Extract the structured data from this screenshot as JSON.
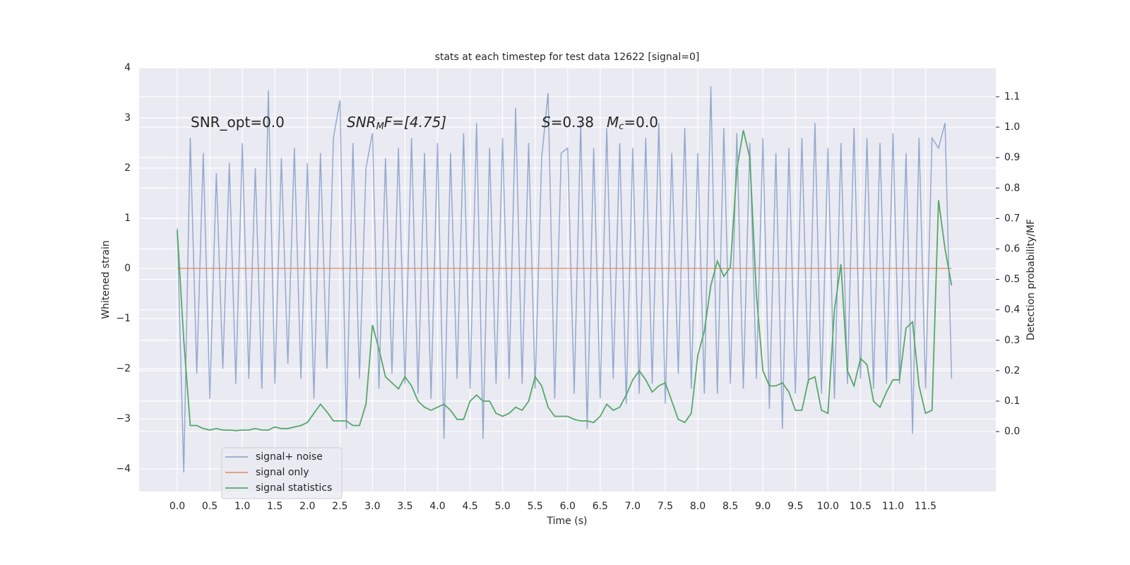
{
  "chart_data": {
    "type": "line",
    "title": "stats at each timestep for test data 12622 [signal=0]",
    "xlabel": "Time (s)",
    "ylabel": "Whitened strain",
    "y2label": "Detection probability/MF",
    "annotations": [
      [
        "SNR_opt=0.0"
      ],
      [
        "SNR",
        "M",
        "F=[4.75]"
      ],
      [
        "S",
        "=0.38",
        "M",
        "c",
        "=0.0"
      ]
    ],
    "x": [
      0.0,
      0.1,
      0.2,
      0.3,
      0.4,
      0.5,
      0.6,
      0.7,
      0.8,
      0.9,
      1.0,
      1.1,
      1.2,
      1.3,
      1.4,
      1.5,
      1.6,
      1.7,
      1.8,
      1.9,
      2.0,
      2.1,
      2.2,
      2.3,
      2.4,
      2.5,
      2.6,
      2.7,
      2.8,
      2.9,
      3.0,
      3.1,
      3.2,
      3.3,
      3.4,
      3.5,
      3.6,
      3.7,
      3.8,
      3.9,
      4.0,
      4.1,
      4.2,
      4.3,
      4.4,
      4.5,
      4.6,
      4.7,
      4.8,
      4.9,
      5.0,
      5.1,
      5.2,
      5.3,
      5.4,
      5.5,
      5.6,
      5.7,
      5.8,
      5.9,
      6.0,
      6.1,
      6.2,
      6.3,
      6.4,
      6.5,
      6.6,
      6.7,
      6.8,
      6.9,
      7.0,
      7.1,
      7.2,
      7.3,
      7.4,
      7.5,
      7.6,
      7.7,
      7.8,
      7.9,
      8.0,
      8.1,
      8.2,
      8.3,
      8.4,
      8.5,
      8.6,
      8.7,
      8.8,
      8.9,
      9.0,
      9.1,
      9.2,
      9.3,
      9.4,
      9.5,
      9.6,
      9.7,
      9.8,
      9.9,
      10.0,
      10.1,
      10.2,
      10.3,
      10.4,
      10.5,
      10.6,
      10.7,
      10.8,
      10.9,
      11.0,
      11.1,
      11.2,
      11.3,
      11.4,
      11.5,
      11.6,
      11.7,
      11.8,
      11.9
    ],
    "series": [
      {
        "name": "signal+ noise",
        "color": "#4c72b0",
        "opacity": 0.55,
        "values": [
          0.8,
          -4.07,
          2.6,
          -2.1,
          2.3,
          -2.6,
          1.9,
          -2.0,
          2.1,
          -2.3,
          2.5,
          -2.2,
          2.0,
          -2.4,
          3.55,
          -2.3,
          2.2,
          -1.9,
          2.4,
          -2.2,
          2.1,
          -2.6,
          2.3,
          -2.0,
          2.6,
          3.35,
          -3.2,
          2.5,
          -2.2,
          2.0,
          2.7,
          -2.4,
          2.2,
          -2.1,
          2.4,
          -2.3,
          2.6,
          -2.5,
          2.3,
          -2.6,
          2.5,
          -3.4,
          2.3,
          -2.2,
          2.7,
          -2.4,
          2.9,
          -3.4,
          2.4,
          -2.3,
          2.6,
          -2.2,
          3.2,
          -2.3,
          2.5,
          -2.4,
          2.2,
          3.5,
          -2.6,
          2.3,
          2.4,
          -2.5,
          2.9,
          -3.2,
          2.4,
          -2.6,
          2.8,
          -2.2,
          2.5,
          -2.7,
          2.4,
          -2.5,
          2.6,
          -2.3,
          2.9,
          -2.7,
          2.3,
          -2.1,
          2.8,
          -2.4,
          2.3,
          -2.5,
          3.63,
          -2.5,
          2.8,
          -2.3,
          2.7,
          -2.4,
          2.5,
          -2.2,
          2.6,
          -2.8,
          2.3,
          -3.2,
          2.4,
          -2.5,
          2.6,
          -2.3,
          2.9,
          -2.5,
          2.4,
          -2.6,
          2.5,
          -2.3,
          2.8,
          -2.2,
          2.6,
          -2.4,
          2.5,
          -2.3,
          2.7,
          -2.3,
          2.3,
          -3.3,
          2.6,
          -2.4,
          2.6,
          2.4,
          2.9,
          -2.2
        ]
      },
      {
        "name": "signal only",
        "color": "#dd8452",
        "opacity": 0.8,
        "values": [
          0,
          0,
          0,
          0,
          0,
          0,
          0,
          0,
          0,
          0,
          0,
          0,
          0,
          0,
          0,
          0,
          0,
          0,
          0,
          0,
          0,
          0,
          0,
          0,
          0,
          0,
          0,
          0,
          0,
          0,
          0,
          0,
          0,
          0,
          0,
          0,
          0,
          0,
          0,
          0,
          0,
          0,
          0,
          0,
          0,
          0,
          0,
          0,
          0,
          0,
          0,
          0,
          0,
          0,
          0,
          0,
          0,
          0,
          0,
          0,
          0,
          0,
          0,
          0,
          0,
          0,
          0,
          0,
          0,
          0,
          0,
          0,
          0,
          0,
          0,
          0,
          0,
          0,
          0,
          0,
          0,
          0,
          0,
          0,
          0,
          0,
          0,
          0,
          0,
          0,
          0,
          0,
          0,
          0,
          0,
          0,
          0,
          0,
          0,
          0,
          0,
          0,
          0,
          0,
          0,
          0,
          0,
          0,
          0,
          0,
          0,
          0,
          0,
          0,
          0,
          0,
          0,
          0,
          0,
          0
        ]
      },
      {
        "name": "signal statistics",
        "color": "#55a868",
        "opacity": 1,
        "axis": "y2",
        "values": [
          0.66,
          0.3,
          0.02,
          0.02,
          0.01,
          0.005,
          0.01,
          0.005,
          0.005,
          0.003,
          0.005,
          0.005,
          0.01,
          0.005,
          0.005,
          0.015,
          0.01,
          0.01,
          0.015,
          0.02,
          0.03,
          0.06,
          0.09,
          0.065,
          0.035,
          0.035,
          0.035,
          0.02,
          0.02,
          0.09,
          0.35,
          0.27,
          0.18,
          0.16,
          0.14,
          0.18,
          0.15,
          0.1,
          0.08,
          0.07,
          0.08,
          0.09,
          0.07,
          0.04,
          0.04,
          0.1,
          0.12,
          0.1,
          0.1,
          0.06,
          0.05,
          0.06,
          0.08,
          0.07,
          0.1,
          0.18,
          0.15,
          0.08,
          0.05,
          0.05,
          0.05,
          0.04,
          0.035,
          0.035,
          0.03,
          0.05,
          0.09,
          0.07,
          0.08,
          0.12,
          0.17,
          0.2,
          0.17,
          0.13,
          0.15,
          0.16,
          0.1,
          0.04,
          0.03,
          0.06,
          0.25,
          0.33,
          0.48,
          0.56,
          0.51,
          0.54,
          0.86,
          0.99,
          0.9,
          0.45,
          0.2,
          0.15,
          0.15,
          0.16,
          0.13,
          0.07,
          0.07,
          0.17,
          0.18,
          0.07,
          0.06,
          0.4,
          0.55,
          0.2,
          0.15,
          0.24,
          0.22,
          0.1,
          0.08,
          0.13,
          0.17,
          0.17,
          0.34,
          0.36,
          0.15,
          0.06,
          0.07,
          0.76,
          0.6,
          0.48
        ]
      }
    ],
    "xlim": [
      -0.586,
      12.58
    ],
    "xticks": [
      {
        "value": 0,
        "label": "0.0"
      },
      0.5,
      {
        "value": 1,
        "label": "1.0"
      },
      1.5,
      {
        "value": 2,
        "label": "2.0"
      },
      2.5,
      {
        "value": 3,
        "label": "3.0"
      },
      3.5,
      {
        "value": 4,
        "label": "4.0"
      },
      4.5,
      {
        "value": 5,
        "label": "5.0"
      },
      5.5,
      {
        "value": 6,
        "label": "6.0"
      },
      6.5,
      {
        "value": 7,
        "label": "7.0"
      },
      7.5,
      {
        "value": 8,
        "label": "8.0"
      },
      8.5,
      {
        "value": 9,
        "label": "9.0"
      },
      9.5,
      {
        "value": 10,
        "label": "10.0"
      },
      10.5,
      {
        "value": 11,
        "label": "11.0"
      },
      11.5
    ],
    "ylim": [
      -4.45,
      4.0
    ],
    "yticks": [
      {
        "value": -4,
        "label": "−4"
      },
      {
        "value": -3,
        "label": "−3"
      },
      {
        "value": -2,
        "label": "−2"
      },
      {
        "value": -1,
        "label": "−1"
      },
      0,
      1,
      2,
      3,
      4
    ],
    "y2lim": [
      -0.197,
      1.195
    ],
    "y2ticks": [
      {
        "value": 0,
        "label": "0.0"
      },
      0.1,
      0.2,
      0.3,
      0.4,
      0.5,
      0.6,
      0.7,
      0.8,
      0.9,
      {
        "value": 1,
        "label": "1.0"
      },
      1.1
    ],
    "grid": true,
    "legend": "lower left",
    "background": "#eaeaf2"
  }
}
